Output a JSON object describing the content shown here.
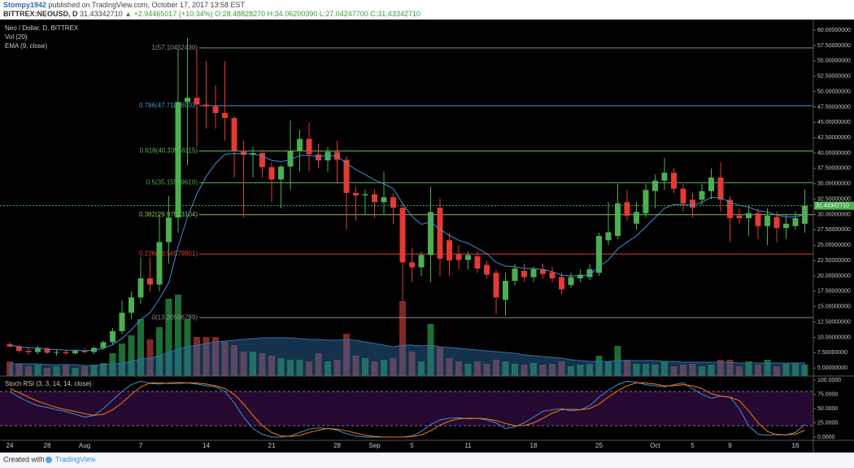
{
  "header": {
    "author": "Stompy1942",
    "published": "published on TradingView.com, October 17, 2017 13:58 EST",
    "symbol": "BITTREX:NEOUSD, D",
    "last_price": "31.43342710",
    "change": "▲ +2.94465017 (+10.34%)",
    "ohlc": "O:28.48828270 H:34.06200390 L:27.04247700 C:31.43342710"
  },
  "chart_data": {
    "type": "candlestick",
    "title": "Neo / Dollar, D, BITTREX",
    "categories": [
      "24",
      null,
      null,
      null,
      "28",
      null,
      null,
      null,
      "Aug",
      null,
      null,
      null,
      null,
      null,
      "7",
      null,
      null,
      null,
      null,
      null,
      null,
      "14",
      null,
      null,
      null,
      null,
      null,
      null,
      "21",
      null,
      null,
      null,
      null,
      null,
      null,
      "28",
      null,
      null,
      null,
      "Sep",
      null,
      null,
      null,
      "5",
      null,
      null,
      null,
      null,
      null,
      "11",
      null,
      null,
      null,
      null,
      null,
      null,
      "18",
      null,
      null,
      null,
      null,
      null,
      null,
      "25",
      null,
      null,
      null,
      null,
      null,
      "Oct",
      null,
      null,
      null,
      "5",
      null,
      null,
      null,
      "9",
      null,
      null,
      null,
      null,
      null,
      null,
      "16",
      null
    ],
    "open": [
      8.9,
      8.5,
      7.8,
      7.6,
      8.2,
      7.5,
      7.6,
      7.4,
      7.8,
      7.6,
      8.3,
      9.2,
      11.0,
      14.0,
      16.5,
      19.6,
      18.6,
      25.5,
      29.5,
      48.3,
      49.0,
      47.9,
      47.6,
      46.5,
      45.7,
      40.4,
      39.7,
      40.0,
      37.7,
      35.7,
      37.8,
      40.3,
      42.3,
      39.8,
      38.8,
      40.2,
      38.9,
      33.5,
      33.1,
      33.3,
      32.0,
      32.8,
      31.1,
      22.2,
      21.4,
      23.4,
      31.1,
      25.8,
      23.5,
      22.6,
      23.2,
      21.8,
      20.5,
      16.1,
      19.2,
      20.8,
      19.8,
      21.1,
      20.6,
      19.8,
      18.5,
      19.6,
      19.8,
      20.5,
      25.8,
      26.5,
      32.0,
      28.5,
      30.2,
      33.8,
      35.5,
      36.8,
      34.2,
      32.4,
      32.4,
      33.8,
      36.0,
      32.4,
      29.8,
      29.4,
      30.2,
      28.1,
      29.6,
      27.8,
      28.1,
      28.4882827
    ],
    "high": [
      9.2,
      8.7,
      8.3,
      8.6,
      8.4,
      8.0,
      7.9,
      8.0,
      8.2,
      8.5,
      9.5,
      11.5,
      16.0,
      17.5,
      23.0,
      23.0,
      30.0,
      33.0,
      57.0,
      58.7,
      57.0,
      55.0,
      51.0,
      55.0,
      46.0,
      42.0,
      41.0,
      40.5,
      38.5,
      38.0,
      45.3,
      43.8,
      45.0,
      41.5,
      41.0,
      42.0,
      39.5,
      34.5,
      34.0,
      34.0,
      37.0,
      33.5,
      32.0,
      24.5,
      24.0,
      34.5,
      32.6,
      27.0,
      25.0,
      24.0,
      24.0,
      22.5,
      21.0,
      20.5,
      22.0,
      22.0,
      21.5,
      22.0,
      21.5,
      20.5,
      20.5,
      21.0,
      22.0,
      27.0,
      32.0,
      35.0,
      34.0,
      32.0,
      35.0,
      36.5,
      39.2,
      37.5,
      35.0,
      33.5,
      35.0,
      37.5,
      38.5,
      33.0,
      31.0,
      31.5,
      31.0,
      31.0,
      30.5,
      30.0,
      30.5,
      34.0620039
    ],
    "low": [
      8.3,
      7.5,
      7.2,
      7.3,
      7.3,
      7.0,
      7.1,
      7.2,
      7.4,
      7.3,
      8.0,
      8.8,
      10.5,
      13.0,
      15.5,
      17.5,
      17.5,
      22.0,
      27.0,
      38.0,
      41.0,
      44.0,
      44.0,
      42.0,
      36.0,
      29.5,
      36.0,
      36.0,
      32.0,
      31.0,
      34.0,
      37.0,
      37.0,
      37.5,
      37.0,
      35.0,
      27.5,
      29.0,
      30.0,
      29.5,
      30.0,
      28.5,
      15.8,
      19.0,
      20.0,
      19.0,
      20.0,
      20.0,
      21.0,
      21.0,
      20.5,
      19.5,
      13.8,
      13.5,
      18.5,
      19.0,
      19.0,
      19.5,
      19.0,
      17.0,
      18.0,
      19.0,
      19.3,
      20.0,
      25.0,
      26.0,
      29.0,
      27.5,
      29.5,
      31.0,
      34.0,
      33.5,
      30.5,
      29.5,
      31.5,
      32.5,
      30.5,
      25.5,
      28.5,
      26.5,
      26.0,
      25.0,
      25.5,
      26.0,
      27.5,
      27.042477
    ],
    "close": [
      8.5,
      7.8,
      7.6,
      8.2,
      7.5,
      7.6,
      7.4,
      7.8,
      7.6,
      8.3,
      9.2,
      11.0,
      14.0,
      16.5,
      19.6,
      18.6,
      25.5,
      29.5,
      48.3,
      49.0,
      47.9,
      47.6,
      46.5,
      45.7,
      40.4,
      39.7,
      40.0,
      37.7,
      35.7,
      37.8,
      40.3,
      42.3,
      39.8,
      38.8,
      40.2,
      38.9,
      33.5,
      33.1,
      33.3,
      32.0,
      32.8,
      31.1,
      22.2,
      21.4,
      23.4,
      30.4,
      22.8,
      22.5,
      22.6,
      23.4,
      21.2,
      20.2,
      16.5,
      19.2,
      21.2,
      19.8,
      21.1,
      20.3,
      19.6,
      17.8,
      19.8,
      20.2,
      21.1,
      26.5,
      27.1,
      31.8,
      29.8,
      30.4,
      34.0,
      35.5,
      36.8,
      34.2,
      31.8,
      31.1,
      33.8,
      36.0,
      32.4,
      29.4,
      29.4,
      30.2,
      28.1,
      29.8,
      27.8,
      28.5,
      29.4,
      31.4334271
    ],
    "up_color": "#4caf50",
    "down_color": "#e53935",
    "ylim": [
      3.7,
      61.6
    ],
    "yticks": [
      {
        "value": 5,
        "label": "5.00000000"
      },
      {
        "value": 7.5,
        "label": "7.50000000"
      },
      {
        "value": 10,
        "label": "10.00000000"
      },
      {
        "value": 12.5,
        "label": "12.50000000"
      },
      {
        "value": 15,
        "label": "15.00000000"
      },
      {
        "value": 17.5,
        "label": "17.50000000"
      },
      {
        "value": 20,
        "label": "20.00000000"
      },
      {
        "value": 22.5,
        "label": "22.50000000"
      },
      {
        "value": 25,
        "label": "25.00000000"
      },
      {
        "value": 27.5,
        "label": "27.50000000"
      },
      {
        "value": 30,
        "label": "30.00000000"
      },
      {
        "value": 32.5,
        "label": "32.50000000"
      },
      {
        "value": 35,
        "label": "35.00000000"
      },
      {
        "value": 37.5,
        "label": "37.50000000"
      },
      {
        "value": 40,
        "label": "40.00000000"
      },
      {
        "value": 42.5,
        "label": "42.50000000"
      },
      {
        "value": 45,
        "label": "45.00000000"
      },
      {
        "value": 47.5,
        "label": "47.50000000"
      },
      {
        "value": 50,
        "label": "50.00000000"
      },
      {
        "value": 52.5,
        "label": "52.50000000"
      },
      {
        "value": 55,
        "label": "55.00000000"
      },
      {
        "value": 57.5,
        "label": "57.50000000"
      },
      {
        "value": 60,
        "label": "60.00000000"
      }
    ],
    "last_price_color": "#4caf50",
    "volume": {
      "name": "Vol (20)",
      "up_color": "#1f7a3a",
      "down_color": "#8e2b2b",
      "ma_color": "#2f6fa8",
      "values": [
        18,
        15,
        12,
        14,
        10,
        12,
        14,
        10,
        12,
        14,
        16,
        28,
        40,
        50,
        70,
        45,
        60,
        95,
        100,
        70,
        48,
        48,
        48,
        42,
        38,
        30,
        30,
        28,
        25,
        22,
        20,
        20,
        18,
        28,
        18,
        20,
        52,
        25,
        22,
        18,
        20,
        22,
        92,
        30,
        18,
        64,
        35,
        22,
        18,
        15,
        18,
        15,
        20,
        18,
        15,
        14,
        16,
        14,
        15,
        18,
        12,
        14,
        15,
        25,
        18,
        37,
        20,
        15,
        15,
        14,
        18,
        12,
        14,
        15,
        12,
        14,
        20,
        20,
        12,
        18,
        14,
        20,
        12,
        15,
        16,
        14
      ],
      "ma": [
        15,
        15,
        15,
        15,
        14,
        14,
        14,
        14,
        13,
        13,
        14,
        15,
        16,
        18,
        21,
        22,
        25,
        29,
        33,
        36,
        38,
        40,
        42,
        43,
        44,
        45,
        46,
        47,
        47,
        47,
        47,
        46,
        45,
        45,
        44,
        44,
        45,
        44,
        42,
        40,
        38,
        36,
        38,
        38,
        37,
        38,
        36,
        35,
        34,
        33,
        32,
        31,
        30,
        29,
        28,
        26,
        25,
        24,
        23,
        22,
        20,
        19,
        18,
        18,
        18,
        19,
        19,
        19,
        19,
        19,
        18,
        18,
        17,
        17,
        17,
        17,
        17,
        17,
        16,
        16,
        16,
        16,
        16,
        16,
        16,
        16
      ]
    },
    "ema": {
      "name": "EMA (9, close)",
      "color": "#3d8fd6",
      "values": [
        8.7,
        8.5,
        8.3,
        8.3,
        8.1,
        8.0,
        7.9,
        7.9,
        7.8,
        7.9,
        8.2,
        8.8,
        9.8,
        11.2,
        12.9,
        14.0,
        16.3,
        18.9,
        24.8,
        29.6,
        33.3,
        36.2,
        38.3,
        39.8,
        39.9,
        39.9,
        39.9,
        39.5,
        38.8,
        38.6,
        38.9,
        39.6,
        39.6,
        39.4,
        39.6,
        39.5,
        38.3,
        37.3,
        36.5,
        35.6,
        35.0,
        34.2,
        31.8,
        29.7,
        28.4,
        28.8,
        27.6,
        26.6,
        25.8,
        25.3,
        24.5,
        23.6,
        22.2,
        21.6,
        21.5,
        21.2,
        21.2,
        21.0,
        20.7,
        20.1,
        20.0,
        20.0,
        20.2,
        21.5,
        22.6,
        24.4,
        25.5,
        26.5,
        28.0,
        29.5,
        31.0,
        31.6,
        31.6,
        31.5,
        32.0,
        32.8,
        32.7,
        32.0,
        31.5,
        31.2,
        30.6,
        30.4,
        29.9,
        29.6,
        29.6,
        30.0
      ]
    },
    "fibonacci": [
      {
        "label": "1(57.10452430)",
        "value": 57.1045243,
        "color": "#8a8a8a"
      },
      {
        "label": "0.786(47.71016903)",
        "value": 47.71016903,
        "color": "#4a90c8"
      },
      {
        "label": "0.618(40.33516115)",
        "value": 40.33516115,
        "color": "#5cb85c"
      },
      {
        "label": "0.5(35.15509610)",
        "value": 35.1550961,
        "color": "#4caf50"
      },
      {
        "label": "0.382(29.97503104)",
        "value": 29.97503104,
        "color": "#8bc34a"
      },
      {
        "label": "0.236(23.56579801)",
        "value": 23.56579801,
        "color": "#e53935"
      },
      {
        "label": "0(13.20566789)",
        "value": 13.20566789,
        "color": "#8a8a8a"
      }
    ],
    "stoch_rsi": {
      "title": "Stoch RSI (3, 3, 14, 14, close)",
      "ylim": [
        -5.7,
        107.1
      ],
      "yticks": [
        {
          "value": 0,
          "label": "0.0000"
        },
        {
          "value": 25,
          "label": "25.0000"
        },
        {
          "value": 50,
          "label": "50.0000"
        },
        {
          "value": 75,
          "label": "75.0000"
        },
        {
          "value": 100,
          "label": "100.0000"
        }
      ],
      "band": [
        20,
        80
      ],
      "band_color": "#7b1fa2",
      "series": [
        {
          "color": "#3d8fd6",
          "values": [
            80,
            70,
            62,
            55,
            52,
            48,
            45,
            40,
            35,
            38,
            50,
            65,
            80,
            92,
            98,
            94,
            93,
            95,
            96,
            95,
            93,
            90,
            88,
            80,
            60,
            35,
            15,
            5,
            0,
            0,
            2,
            8,
            14,
            16,
            15,
            12,
            6,
            2,
            0,
            0,
            0,
            0,
            0,
            2,
            10,
            22,
            30,
            33,
            34,
            32,
            33,
            30,
            25,
            15,
            18,
            25,
            35,
            45,
            48,
            50,
            46,
            48,
            55,
            70,
            82,
            92,
            98,
            96,
            92,
            90,
            88,
            92,
            95,
            85,
            75,
            68,
            72,
            70,
            50,
            20,
            5,
            3,
            5,
            4,
            8,
            22
          ]
        },
        {
          "color": "#f57c00",
          "values": [
            85,
            78,
            70,
            63,
            57,
            52,
            48,
            45,
            41,
            38,
            40,
            48,
            60,
            75,
            88,
            95,
            95,
            94,
            94,
            95,
            95,
            93,
            90,
            85,
            75,
            58,
            38,
            20,
            8,
            2,
            1,
            3,
            8,
            12,
            15,
            14,
            11,
            7,
            3,
            1,
            0,
            0,
            0,
            1,
            4,
            11,
            21,
            28,
            32,
            33,
            33,
            32,
            29,
            24,
            20,
            20,
            25,
            33,
            42,
            48,
            49,
            48,
            50,
            58,
            70,
            81,
            90,
            95,
            95,
            93,
            90,
            90,
            92,
            90,
            85,
            76,
            72,
            70,
            64,
            46,
            25,
            10,
            4,
            4,
            5,
            12
          ]
        }
      ]
    }
  },
  "footer": {
    "created": "Created with",
    "brand": "TradingView"
  }
}
